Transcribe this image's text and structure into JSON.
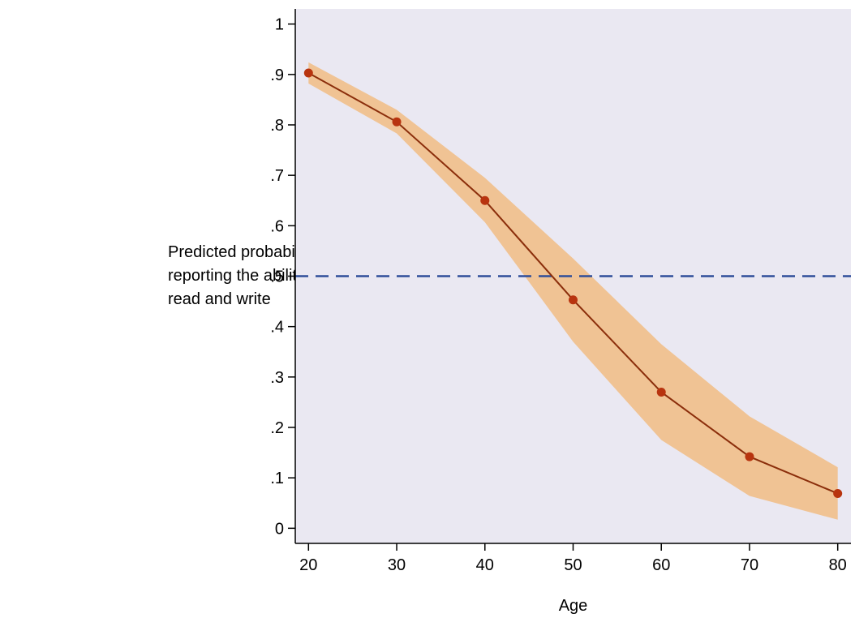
{
  "chart_data": {
    "type": "line",
    "xlabel": "Age",
    "ylabel_lines": [
      "Predicted probability of",
      "reporting the ability to",
      "read and write"
    ],
    "xlim": [
      18.5,
      81.5
    ],
    "ylim": [
      -0.03,
      1.03
    ],
    "x_ticks": [
      20,
      30,
      40,
      50,
      60,
      70,
      80
    ],
    "x_tick_labels": [
      "20",
      "30",
      "40",
      "50",
      "60",
      "70",
      "80"
    ],
    "y_ticks": [
      0,
      0.1,
      0.2,
      0.3,
      0.4,
      0.5,
      0.6,
      0.7,
      0.8,
      0.9,
      1
    ],
    "y_tick_labels": [
      "0",
      ".1",
      ".2",
      ".3",
      ".4",
      ".5",
      ".6",
      ".7",
      ".8",
      ".9",
      "1"
    ],
    "grid": false,
    "series": [
      {
        "x": [
          20,
          30,
          40,
          50,
          60,
          70,
          80
        ],
        "y": [
          0.903,
          0.806,
          0.65,
          0.453,
          0.27,
          0.142,
          0.069
        ],
        "ci_lower": [
          0.882,
          0.783,
          0.607,
          0.37,
          0.175,
          0.064,
          0.017
        ],
        "ci_upper": [
          0.924,
          0.83,
          0.695,
          0.535,
          0.365,
          0.222,
          0.121
        ]
      }
    ],
    "reference_line": {
      "y": 0.5,
      "style": "dashed"
    },
    "colors": {
      "plot_background": "#EAE8F2",
      "line": "#8B2E0B",
      "marker": "#B8340F",
      "ci_band": "#F0C394",
      "reference_line": "#2F4E9A",
      "axis": "#000000"
    }
  }
}
